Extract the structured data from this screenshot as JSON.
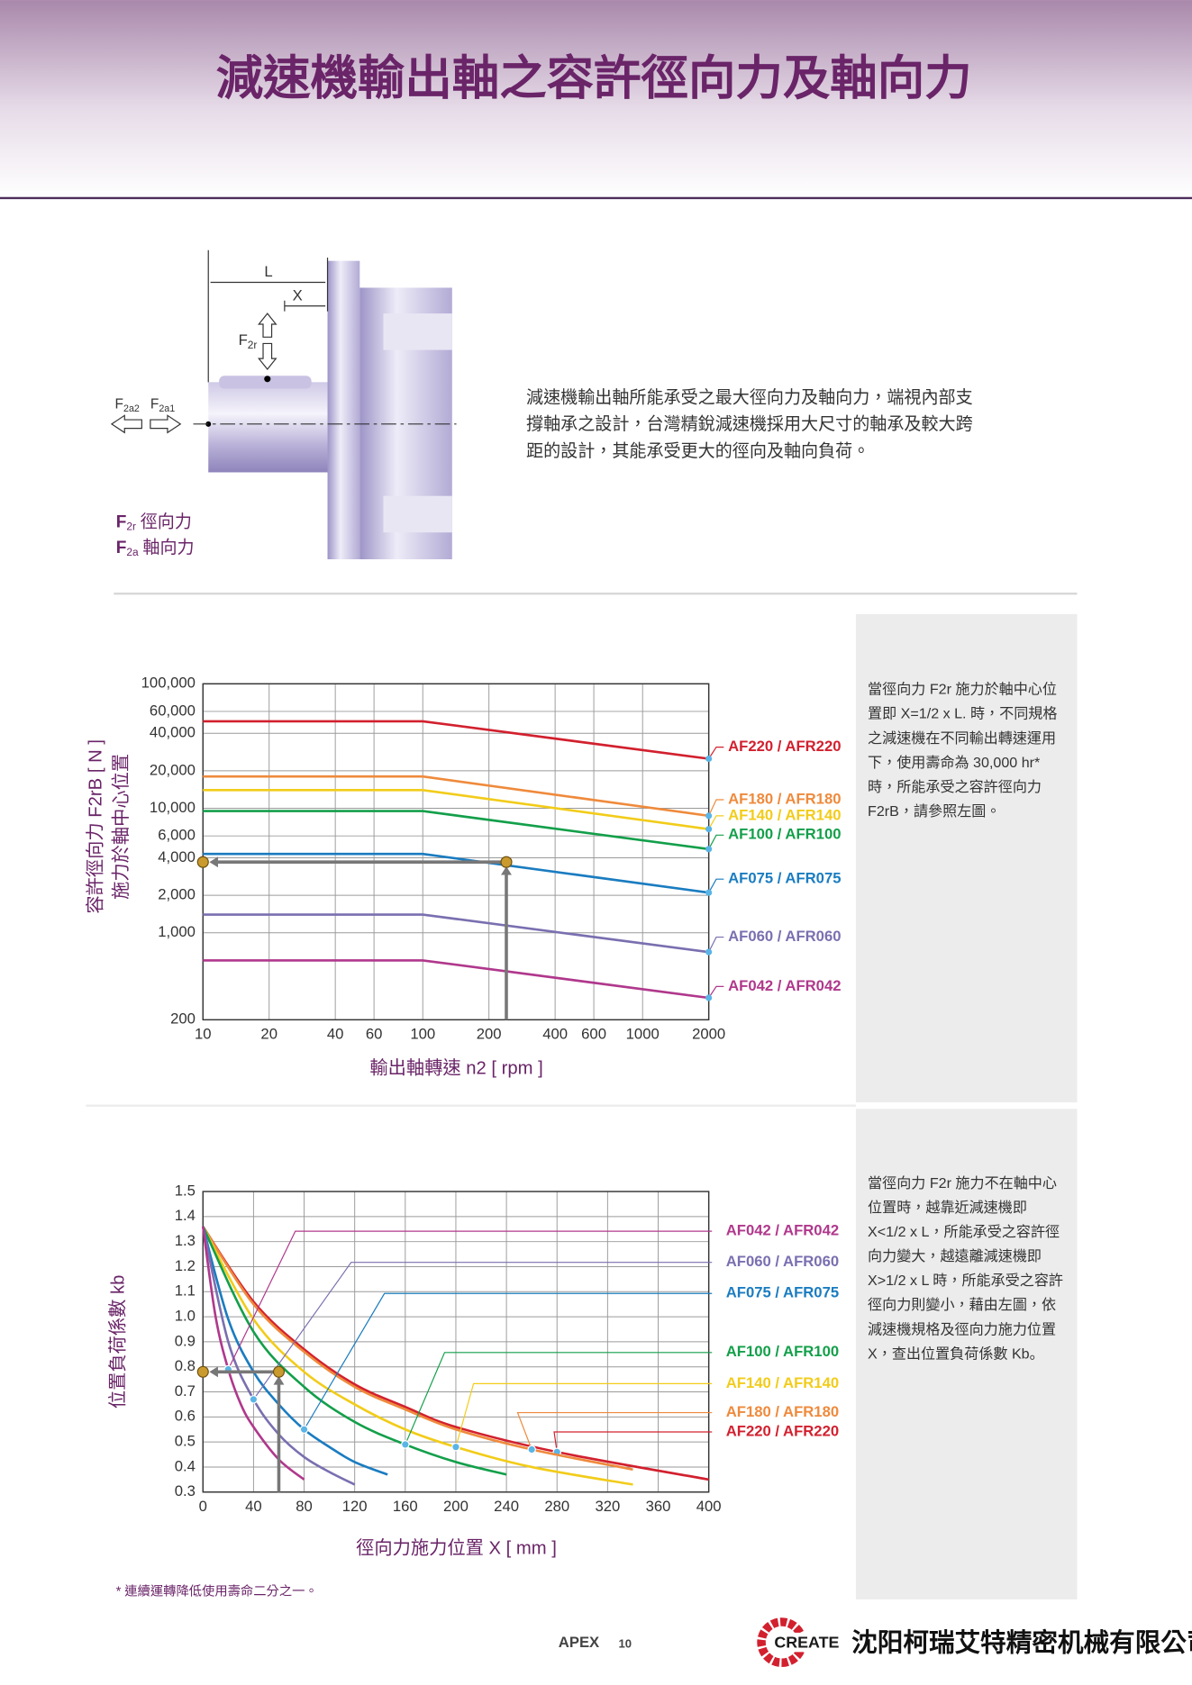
{
  "header": {
    "title": "減速機輸出軸之容許徑向力及軸向力"
  },
  "diagram": {
    "dim_L": "L",
    "dim_X": "X",
    "radial": {
      "main": "F",
      "sub": "2r"
    },
    "axial_2": {
      "main": "F",
      "sub": "2a2"
    },
    "axial_1": {
      "main": "F",
      "sub": "2a1"
    },
    "legend": [
      {
        "main": "F",
        "sub": "2r",
        "text": "徑向力"
      },
      {
        "main": "F",
        "sub": "2a",
        "text": "軸向力"
      }
    ]
  },
  "intro": {
    "lines": [
      "減速機輸出軸所能承受之最大徑向力及軸向力，端視內部支",
      "撐軸承之設計，台灣精銳減速機採用大尺寸的軸承及較大跨",
      "距的設計，其能承受更大的徑向及軸向負荷。"
    ]
  },
  "notes": [
    {
      "lines": [
        "當徑向力 F2r 施力於軸中心位",
        "置即 X=1/2 x L. 時，不同規格",
        "之減速機在不同輸出轉速運用",
        "下，使用壽命為 30,000 hr*",
        "時，所能承受之容許徑向力",
        "F2rB，請參照左圖。"
      ]
    },
    {
      "lines": [
        "當徑向力 F2r 施力不在軸中心",
        "位置時，越靠近減速機即",
        "X<1/2 x L，所能承受之容許徑",
        "向力變大，越遠離減速機即",
        "X>1/2 x L 時，所能承受之容許",
        "徑向力則變小，藉由左圖，依",
        "減速機規格及徑向力施力位置",
        "X，查出位置負荷係數 Kb。"
      ]
    }
  ],
  "chart_data": [
    {
      "type": "line",
      "x_label": "輸出軸轉速 n2 [ rpm ]",
      "y_label": [
        "容許徑向力 F2rB [ N ]",
        "施力於軸中心位置"
      ],
      "x_scale": "log",
      "y_scale": "log",
      "grid": true,
      "x": [
        10,
        100,
        2000
      ],
      "xlim": [
        10,
        2000
      ],
      "ylim": [
        200,
        100000
      ],
      "xticks": [
        10,
        20,
        40,
        60,
        100,
        200,
        400,
        600,
        1000,
        2000
      ],
      "yticks": [
        200,
        {
          "value": 1000,
          "label": "1,000"
        },
        {
          "value": 2000,
          "label": "2,000"
        },
        {
          "value": 4000,
          "label": "4,000"
        },
        {
          "value": 6000,
          "label": "6,000"
        },
        {
          "value": 10000,
          "label": "10,000"
        },
        {
          "value": 20000,
          "label": "20,000"
        },
        {
          "value": 40000,
          "label": "40,000"
        },
        {
          "value": 60000,
          "label": "60,000"
        },
        {
          "value": 100000,
          "label": "100,000"
        }
      ],
      "series": [
        {
          "name": "AF220 / AFR220",
          "color": "#d2202e",
          "values": [
            50000,
            50000,
            25000
          ]
        },
        {
          "name": "AF180 / AFR180",
          "color": "#ef8a3c",
          "values": [
            18000,
            18000,
            8700
          ]
        },
        {
          "name": "AF140 / AFR140",
          "color": "#f2cc1a",
          "values": [
            14000,
            14000,
            6800
          ]
        },
        {
          "name": "AF100 / AFR100",
          "color": "#139f4a",
          "values": [
            9500,
            9500,
            4700
          ]
        },
        {
          "name": "AF075 / AFR075",
          "color": "#1a7cc0",
          "values": [
            4300,
            4300,
            2100
          ]
        },
        {
          "name": "AF060 / AFR060",
          "color": "#7a6fb0",
          "values": [
            1400,
            1400,
            700
          ]
        },
        {
          "name": "AF042 / AFR042",
          "color": "#b0388c",
          "values": [
            600,
            600,
            300
          ]
        }
      ],
      "example": {
        "x": 240,
        "y": 3700
      }
    },
    {
      "type": "line",
      "x_label": "徑向力施力位置 X [ mm ]",
      "y_label": [
        "位置負荷係數 kb"
      ],
      "smooth": true,
      "grid": true,
      "xlim": [
        0,
        400
      ],
      "ylim": [
        0.3,
        1.5
      ],
      "xticks": [
        0,
        40,
        80,
        120,
        160,
        200,
        240,
        280,
        320,
        360,
        400
      ],
      "yticks": [
        0.3,
        0.4,
        0.5,
        0.6,
        0.7,
        0.8,
        0.9,
        {
          "value": 1,
          "label": "1.0"
        },
        1.1,
        1.2,
        1.3,
        1.4,
        1.5
      ],
      "series": [
        {
          "name": "AF220 / AFR220",
          "color": "#d2202e",
          "x": [
            0,
            40,
            80,
            120,
            160,
            200,
            280,
            400
          ],
          "values": [
            1.36,
            1.06,
            0.87,
            0.73,
            0.64,
            0.56,
            0.46,
            0.35
          ]
        },
        {
          "name": "AF180 / AFR180",
          "color": "#ef8a3c",
          "x": [
            0,
            40,
            80,
            120,
            160,
            200,
            260,
            340
          ],
          "values": [
            1.36,
            1.05,
            0.86,
            0.72,
            0.63,
            0.55,
            0.47,
            0.39
          ]
        },
        {
          "name": "AF140 / AFR140",
          "color": "#f2cc1a",
          "x": [
            0,
            40,
            80,
            120,
            160,
            200,
            260,
            340
          ],
          "values": [
            1.36,
            0.99,
            0.78,
            0.65,
            0.55,
            0.48,
            0.4,
            0.33
          ]
        },
        {
          "name": "AF100 / AFR100",
          "color": "#139f4a",
          "x": [
            0,
            40,
            80,
            120,
            160,
            200,
            240
          ],
          "values": [
            1.36,
            0.94,
            0.72,
            0.58,
            0.49,
            0.42,
            0.37
          ]
        },
        {
          "name": "AF075 / AFR075",
          "color": "#1a7cc0",
          "x": [
            0,
            20,
            40,
            60,
            80,
            100,
            120,
            146
          ],
          "values": [
            1.36,
            0.99,
            0.78,
            0.65,
            0.55,
            0.48,
            0.42,
            0.37
          ]
        },
        {
          "name": "AF060 / AFR060",
          "color": "#7a6fb0",
          "x": [
            0,
            20,
            40,
            60,
            80,
            100,
            120
          ],
          "values": [
            1.36,
            0.9,
            0.67,
            0.53,
            0.44,
            0.38,
            0.33
          ]
        },
        {
          "name": "AF042 / AFR042",
          "color": "#b0388c",
          "x": [
            0,
            10,
            20,
            30,
            40,
            60,
            80
          ],
          "values": [
            1.36,
            1,
            0.79,
            0.65,
            0.56,
            0.43,
            0.35
          ]
        }
      ],
      "example": {
        "x": 60,
        "y": 0.78
      }
    }
  ],
  "footnote": "* 連續運轉降低使用壽命二分之一。",
  "footer": {
    "brand": "APEX",
    "page": "10",
    "logo": "CREATE",
    "company": "沈阳柯瑞艾特精密机械有限公司"
  }
}
